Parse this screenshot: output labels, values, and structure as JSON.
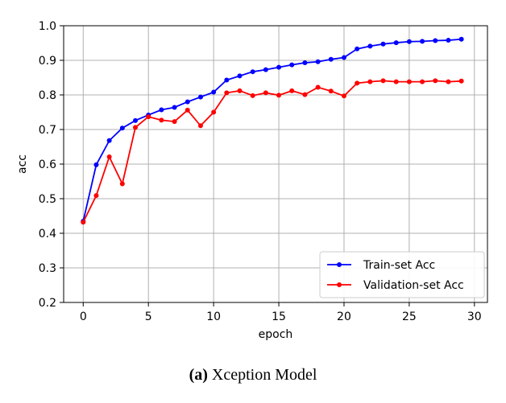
{
  "chart_data": {
    "type": "line",
    "xlabel": "epoch",
    "ylabel": "acc",
    "xlim": [
      -1.5,
      31
    ],
    "ylim": [
      0.2,
      1.0
    ],
    "xticks": [
      0,
      5,
      10,
      15,
      20,
      25,
      30
    ],
    "yticks": [
      0.2,
      0.3,
      0.4,
      0.5,
      0.6,
      0.7,
      0.8,
      0.9,
      1.0
    ],
    "xtick_labels": [
      "0",
      "5",
      "10",
      "15",
      "20",
      "25",
      "30"
    ],
    "ytick_labels": [
      "0.2",
      "0.3",
      "0.4",
      "0.5",
      "0.6",
      "0.7",
      "0.8",
      "0.9",
      "1.0"
    ],
    "grid": true,
    "legend_position": "lower-right",
    "x": [
      0,
      1,
      2,
      3,
      4,
      5,
      6,
      7,
      8,
      9,
      10,
      11,
      12,
      13,
      14,
      15,
      16,
      17,
      18,
      19,
      20,
      21,
      22,
      23,
      24,
      25,
      26,
      27,
      28,
      29
    ],
    "series": [
      {
        "name": "Train-set Acc",
        "color": "#0000ff",
        "values": [
          0.435,
          0.598,
          0.668,
          0.704,
          0.726,
          0.742,
          0.757,
          0.764,
          0.78,
          0.794,
          0.808,
          0.843,
          0.855,
          0.867,
          0.873,
          0.88,
          0.887,
          0.893,
          0.896,
          0.903,
          0.908,
          0.933,
          0.941,
          0.947,
          0.951,
          0.954,
          0.955,
          0.957,
          0.958,
          0.961
        ]
      },
      {
        "name": "Validation-set Acc",
        "color": "#ff0000",
        "values": [
          0.432,
          0.509,
          0.621,
          0.543,
          0.706,
          0.737,
          0.727,
          0.723,
          0.756,
          0.711,
          0.75,
          0.806,
          0.812,
          0.798,
          0.806,
          0.799,
          0.812,
          0.801,
          0.822,
          0.811,
          0.797,
          0.834,
          0.838,
          0.841,
          0.838,
          0.838,
          0.838,
          0.841,
          0.838,
          0.84
        ]
      }
    ]
  },
  "caption": {
    "prefix": "(a)",
    "text": "Xception Model"
  }
}
